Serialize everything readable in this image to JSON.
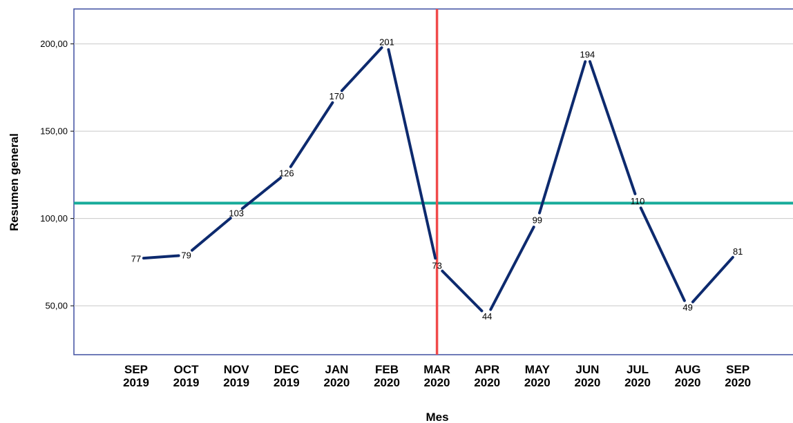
{
  "chart_data": {
    "type": "line",
    "title": "",
    "xlabel": "Mes",
    "ylabel": "Resumen general",
    "categories": [
      [
        "SEP",
        "2019"
      ],
      [
        "OCT",
        "2019"
      ],
      [
        "NOV",
        "2019"
      ],
      [
        "DEC",
        "2019"
      ],
      [
        "JAN",
        "2020"
      ],
      [
        "FEB",
        "2020"
      ],
      [
        "MAR",
        "2020"
      ],
      [
        "APR",
        "2020"
      ],
      [
        "MAY",
        "2020"
      ],
      [
        "JUN",
        "2020"
      ],
      [
        "JUL",
        "2020"
      ],
      [
        "AUG",
        "2020"
      ],
      [
        "SEP",
        "2020"
      ]
    ],
    "values": [
      77,
      79,
      103,
      126,
      170,
      201,
      73,
      44,
      99,
      194,
      110,
      49,
      81
    ],
    "data_labels": [
      "77",
      "79",
      "103",
      "126",
      "170",
      "201",
      "73",
      "44",
      "99",
      "194",
      "110",
      "49",
      "81"
    ],
    "y_ticks": [
      50,
      100,
      150,
      200
    ],
    "y_tick_labels": [
      "50,00",
      "100,00",
      "150,00",
      "200,00"
    ],
    "ylim": [
      22,
      220
    ],
    "grid": true,
    "reference_lines": {
      "horizontal": {
        "value": 108.8,
        "color": "#17ab9a"
      },
      "vertical": {
        "category": "MAR 2020",
        "color": "#f04a4a"
      }
    },
    "colors": {
      "line": "#0d2a6e",
      "frame": "#3f4fa0",
      "grid": "#c8c8c8"
    }
  }
}
